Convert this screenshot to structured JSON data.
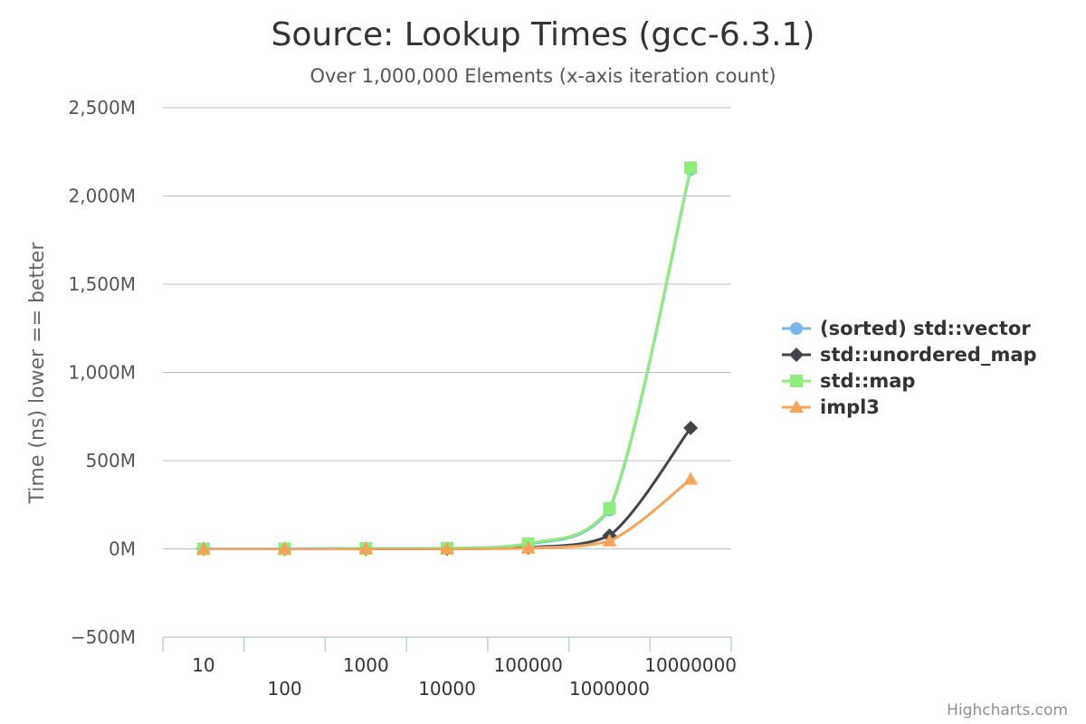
{
  "chart_data": {
    "type": "line",
    "title": "Source: Lookup Times (gcc-6.3.1)",
    "subtitle": "Over 1,000,000 Elements (x-axis iteration count)",
    "xlabel": "",
    "ylabel": "Time (ns) lower == better",
    "categories": [
      "10",
      "100",
      "1000",
      "10000",
      "100000",
      "1000000",
      "10000000"
    ],
    "y_ticks": [
      "−500M",
      "0M",
      "500M",
      "1,000M",
      "1,500M",
      "2,000M",
      "2,500M"
    ],
    "ylim": [
      -500,
      2500
    ],
    "y_unit_note": "values in millions of ns",
    "grid": true,
    "legend_position": "right",
    "series": [
      {
        "name": "(sorted) std::vector",
        "color": "#7cb5ec",
        "marker": "circle",
        "values": [
          0,
          0.3,
          2.5,
          3,
          25,
          220,
          2150
        ]
      },
      {
        "name": "std::unordered_map",
        "color": "#434348",
        "marker": "diamond",
        "values": [
          0,
          0.1,
          0.8,
          1,
          8,
          75,
          685
        ]
      },
      {
        "name": "std::map",
        "color": "#90ed7d",
        "marker": "square",
        "values": [
          0,
          0.3,
          2.5,
          3.5,
          30,
          230,
          2160
        ]
      },
      {
        "name": "impl3",
        "color": "#f7a35c",
        "marker": "triangle",
        "values": [
          0,
          0.05,
          0.4,
          0.5,
          4.5,
          45,
          395
        ]
      }
    ]
  },
  "credits": "Highcharts.com"
}
